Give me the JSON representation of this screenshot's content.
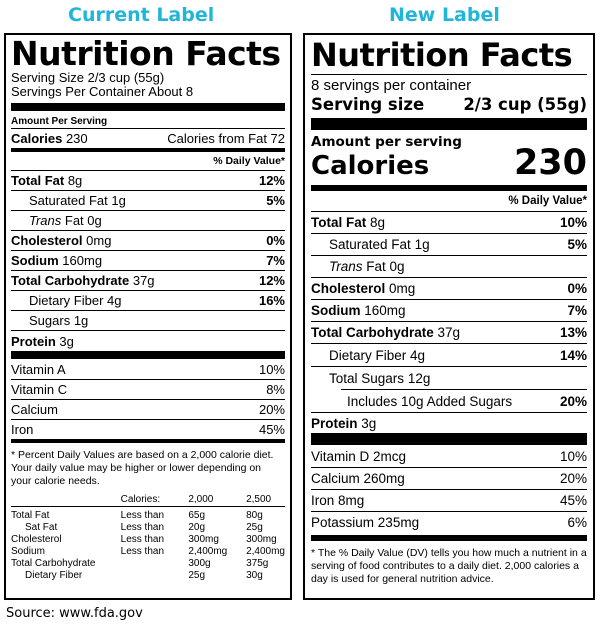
{
  "headings": {
    "current": "Current Label",
    "new": "New Label"
  },
  "source": "Source: www.fda.gov",
  "current": {
    "title": "Nutrition Facts",
    "serving_size": "Serving Size 2/3 cup (55g)",
    "servings_per_container": "Servings Per Container About 8",
    "amount_per_serving": "Amount Per Serving",
    "calories_label": "Calories",
    "calories_value": "230",
    "calories_from_fat": "Calories from Fat 72",
    "dv_header": "% Daily Value*",
    "nutrients": [
      {
        "name": "Total Fat",
        "amount": "8g",
        "dv": "12%"
      },
      {
        "name": "Saturated Fat",
        "amount": "1g",
        "dv": "5%"
      },
      {
        "name": "Trans",
        "amount": " Fat 0g",
        "dv": ""
      },
      {
        "name": "Cholesterol",
        "amount": "0mg",
        "dv": "0%"
      },
      {
        "name": "Sodium",
        "amount": "160mg",
        "dv": "7%"
      },
      {
        "name": "Total Carbohydrate",
        "amount": "37g",
        "dv": "12%"
      },
      {
        "name": "Dietary Fiber",
        "amount": "4g",
        "dv": "16%"
      },
      {
        "name": "Sugars",
        "amount": "1g",
        "dv": ""
      },
      {
        "name": "Protein",
        "amount": "3g",
        "dv": ""
      }
    ],
    "vitamins": [
      {
        "name": "Vitamin A",
        "dv": "10%"
      },
      {
        "name": "Vitamin C",
        "dv": "8%"
      },
      {
        "name": "Calcium",
        "dv": "20%"
      },
      {
        "name": "Iron",
        "dv": "45%"
      }
    ],
    "footnote": "* Percent Daily Values are based on a 2,000 calorie diet. Your daily value may be higher or lower depending on your calorie needs.",
    "table_header": [
      "",
      "Calories:",
      "2,000",
      "2,500"
    ],
    "table_rows": [
      [
        "Total Fat",
        "Less than",
        "65g",
        "80g"
      ],
      [
        "Sat Fat",
        "Less than",
        "20g",
        "25g"
      ],
      [
        "Cholesterol",
        "Less than",
        "300mg",
        "300mg"
      ],
      [
        "Sodium",
        "Less than",
        "2,400mg",
        "2,400mg"
      ],
      [
        "Total Carbohydrate",
        "",
        "300g",
        "375g"
      ],
      [
        "Dietary Fiber",
        "",
        "25g",
        "30g"
      ]
    ]
  },
  "new": {
    "title": "Nutrition Facts",
    "servings_per_container": "8 servings per container",
    "serving_size_label": "Serving size",
    "serving_size_value": "2/3 cup (55g)",
    "amount_per_serving": "Amount per serving",
    "calories_label": "Calories",
    "calories_value": "230",
    "dv_header": "% Daily Value*",
    "nutrients": [
      {
        "name": "Total Fat",
        "amount": "8g",
        "dv": "10%"
      },
      {
        "name": "Saturated Fat",
        "amount": "1g",
        "dv": "5%"
      },
      {
        "name": "Trans",
        "amount": " Fat 0g",
        "dv": ""
      },
      {
        "name": "Cholesterol",
        "amount": "0mg",
        "dv": "0%"
      },
      {
        "name": "Sodium",
        "amount": "160mg",
        "dv": "7%"
      },
      {
        "name": "Total Carbohydrate",
        "amount": "37g",
        "dv": "13%"
      },
      {
        "name": "Dietary Fiber",
        "amount": "4g",
        "dv": "14%"
      },
      {
        "name": "Total Sugars",
        "amount": "12g",
        "dv": ""
      },
      {
        "name": "Includes 10g Added Sugars",
        "amount": "",
        "dv": "20%"
      },
      {
        "name": "Protein",
        "amount": "3g",
        "dv": ""
      }
    ],
    "vitamins": [
      {
        "name": "Vitamin D",
        "amount": "2mcg",
        "dv": "10%"
      },
      {
        "name": "Calcium",
        "amount": "260mg",
        "dv": "20%"
      },
      {
        "name": "Iron",
        "amount": "8mg",
        "dv": "45%"
      },
      {
        "name": "Potassium",
        "amount": "235mg",
        "dv": "6%"
      }
    ],
    "footnote": "* The % Daily Value (DV) tells you how much a nutrient in a serving of food contributes to a daily diet. 2,000 calories a day is used for general nutrition advice."
  }
}
